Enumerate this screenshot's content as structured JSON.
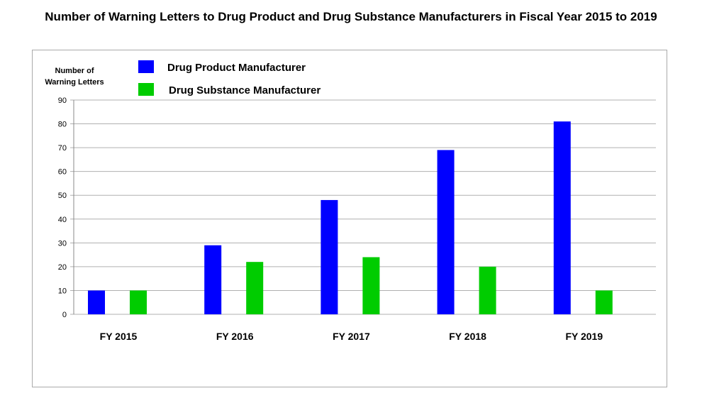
{
  "chart_data": {
    "type": "bar",
    "title": "Number of Warning Letters to Drug Product and Drug Substance Manufacturers in Fiscal Year 2015 to 2019",
    "ylabel": [
      "Number of",
      "Warning Letters"
    ],
    "xlabel": "",
    "categories": [
      "FY 2015",
      "FY 2016",
      "FY 2017",
      "FY 2018",
      "FY 2019"
    ],
    "series": [
      {
        "name": "Drug Product Manufacturer",
        "color": "#0000ff",
        "values": [
          10,
          29,
          48,
          69,
          81
        ]
      },
      {
        "name": "Drug Substance Manufacturer",
        "color": "#00cc00",
        "values": [
          10,
          22,
          24,
          20,
          10
        ]
      }
    ],
    "ylim": [
      0,
      90
    ],
    "yticks": [
      0,
      10,
      20,
      30,
      40,
      50,
      60,
      70,
      80,
      90
    ],
    "grid": true,
    "legend": "top-left"
  }
}
